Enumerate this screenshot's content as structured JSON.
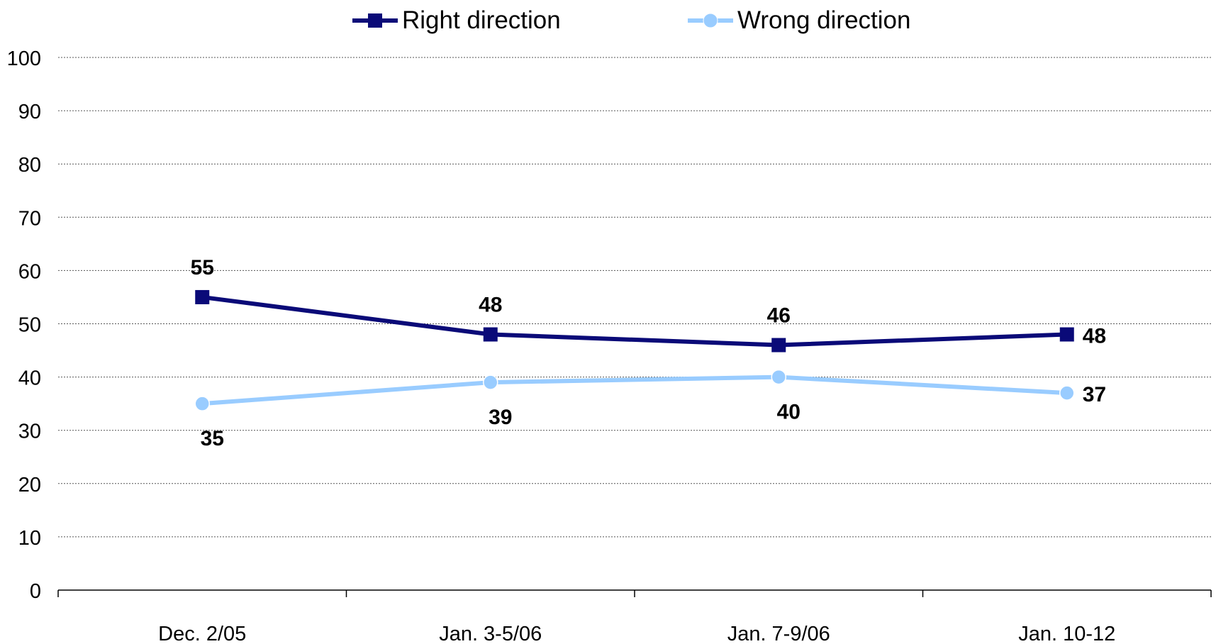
{
  "chart_data": {
    "type": "line",
    "title": "",
    "xlabel": "",
    "ylabel": "",
    "categories": [
      "Dec. 2/05",
      "Jan. 3-5/06",
      "Jan. 7-9/06",
      "Jan. 10-12"
    ],
    "ylim": [
      0,
      100
    ],
    "yticks": [
      0,
      10,
      20,
      30,
      40,
      50,
      60,
      70,
      80,
      90,
      100
    ],
    "grid": true,
    "legend_position": "top",
    "series": [
      {
        "name": "Right direction",
        "values": [
          55,
          48,
          46,
          48
        ],
        "color": "#0a0a78",
        "marker": "square",
        "label_positions": [
          "above",
          "above",
          "above",
          "right"
        ]
      },
      {
        "name": "Wrong direction",
        "values": [
          35,
          39,
          40,
          37
        ],
        "color": "#99ccff",
        "marker": "circle",
        "label_positions": [
          "below",
          "below",
          "below",
          "right"
        ]
      }
    ]
  }
}
